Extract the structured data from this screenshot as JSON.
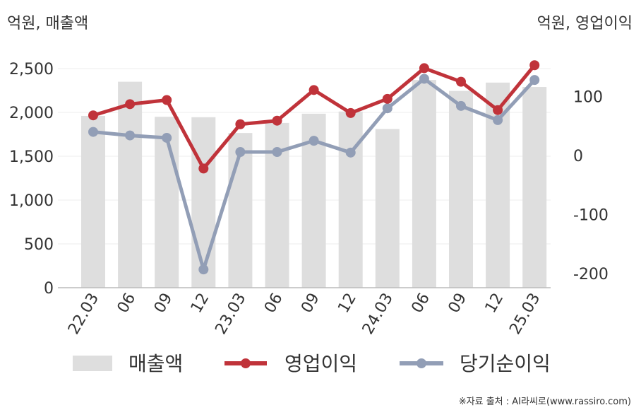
{
  "chart_data": {
    "type": "bar+line",
    "categories": [
      "22.03",
      "06",
      "09",
      "12",
      "23.03",
      "06",
      "09",
      "12",
      "24.03",
      "06",
      "09",
      "12",
      "25.03"
    ],
    "left_axis_label": "억원, 매출액",
    "right_axis_label": "억원, 영업이익",
    "left_ylim": [
      0,
      2500
    ],
    "left_ticks": [
      "0",
      "500",
      "1,000",
      "1,500",
      "2,000",
      "2,500"
    ],
    "left_tick_values": [
      0,
      500,
      1000,
      1500,
      2000,
      2500
    ],
    "right_ticks": [
      "-200",
      "-100",
      "0",
      "100"
    ],
    "right_tick_values": [
      -200,
      -100,
      0,
      100
    ],
    "series": [
      {
        "name": "매출액",
        "kind": "bar",
        "axis": "left",
        "color": "#dedede",
        "values": [
          1960,
          2350,
          1950,
          1945,
          1765,
          1880,
          1985,
          2010,
          1810,
          2370,
          2245,
          2340,
          2290
        ]
      },
      {
        "name": "영업이익",
        "kind": "line",
        "axis": "right",
        "color": "#c0333a",
        "values": [
          68,
          87,
          94,
          -22,
          53,
          59,
          111,
          72,
          96,
          148,
          125,
          77,
          153
        ]
      },
      {
        "name": "당기순이익",
        "kind": "line",
        "axis": "right",
        "color": "#929eb6",
        "values": [
          40,
          34,
          30,
          -193,
          6,
          6,
          25,
          5,
          80,
          130,
          84,
          60,
          128
        ]
      }
    ],
    "grid": true,
    "legend_position": "bottom"
  },
  "source_text": "※자료 출처 : AI라씨로(www.rassiro.com)"
}
